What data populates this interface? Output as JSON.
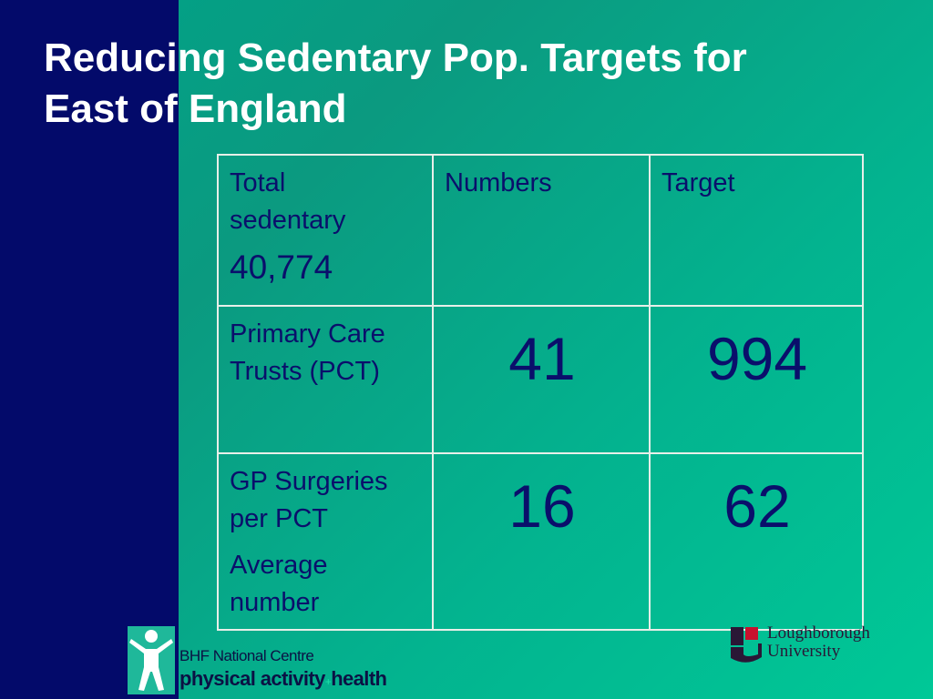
{
  "title": {
    "line1": "Reducing Sedentary Pop. Targets for",
    "line2": "East of England"
  },
  "table": {
    "header": {
      "label_line1": "Total",
      "label_line2": "sedentary",
      "total_value": "40,774",
      "numbers_header": "Numbers",
      "target_header": "Target"
    },
    "rows": [
      {
        "label_line1": "Primary Care",
        "label_line2": "Trusts (PCT)",
        "number": "41",
        "target": "994"
      },
      {
        "label_line1": "GP Surgeries",
        "label_line2": "per PCT",
        "label_line3": "Average",
        "label_line4": "number",
        "number": "16",
        "target": "62"
      }
    ]
  },
  "footer": {
    "bhf_line1": "BHF National Centre",
    "bhf_line2a": "physical activity",
    "bhf_sep": "+",
    "bhf_line2b": "health",
    "university_line1": "Loughborough",
    "university_line2": "University"
  },
  "colors": {
    "left_band": "#030a6a",
    "background": "#00a388",
    "table_text": "#0a0f6b",
    "title_text": "#ffffff"
  }
}
